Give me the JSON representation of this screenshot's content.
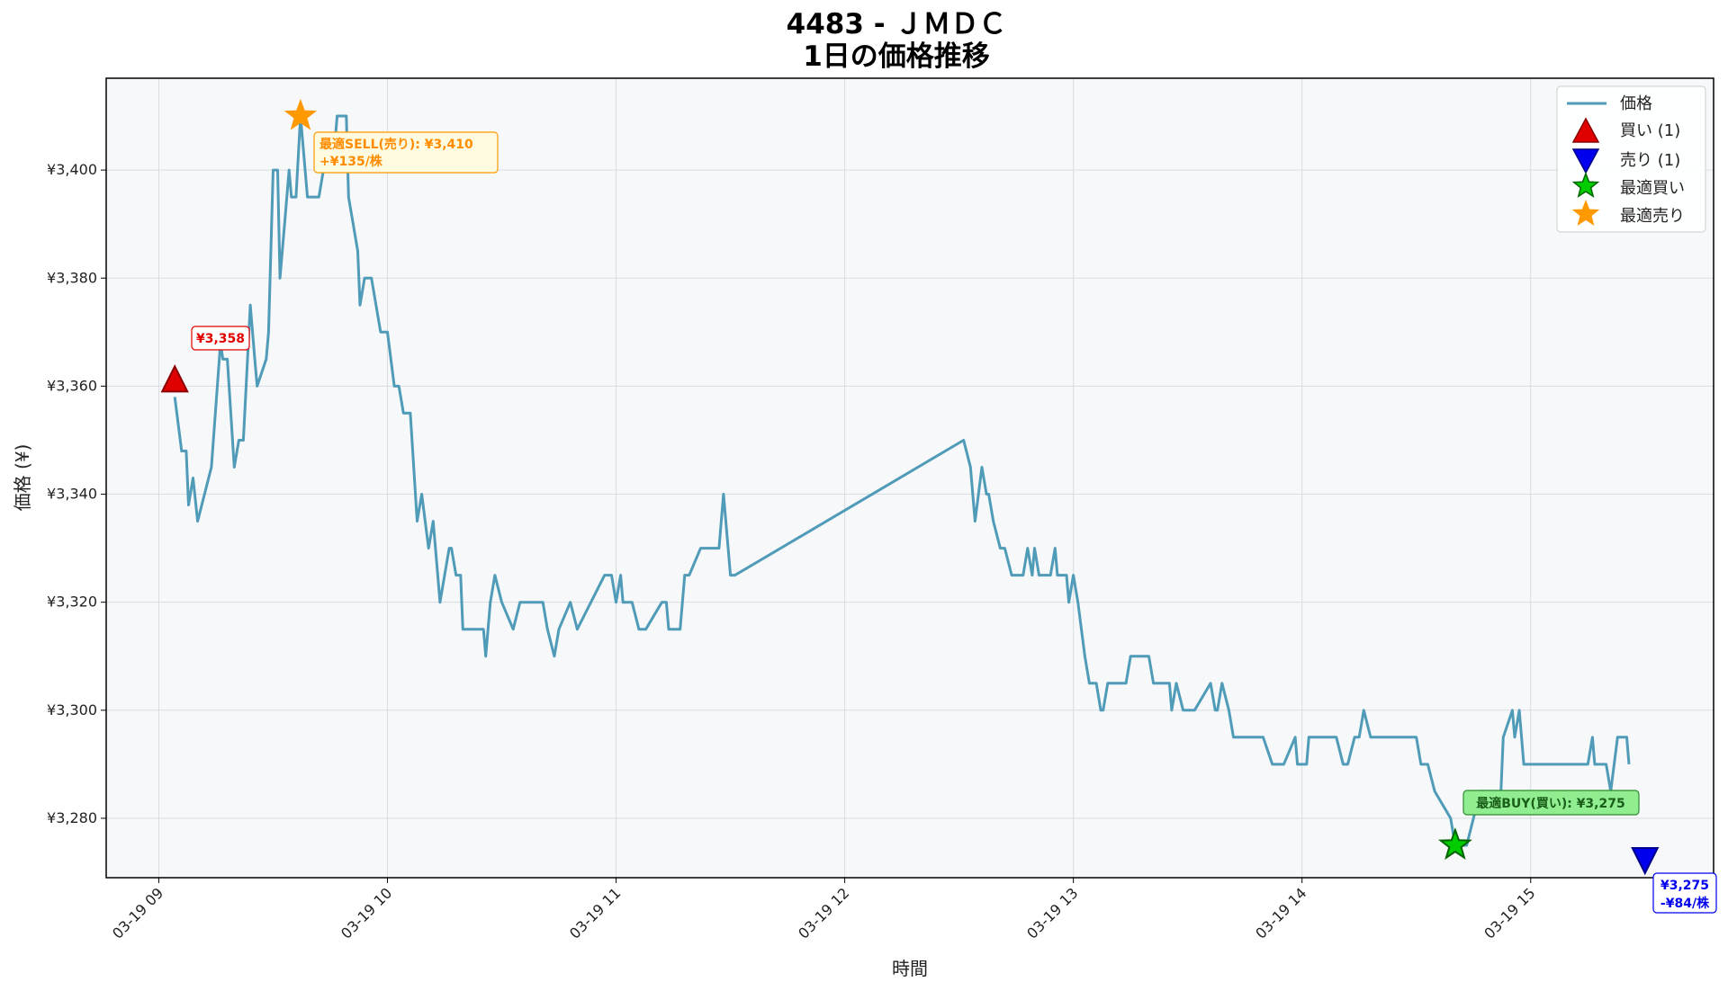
{
  "chart_data": {
    "type": "line",
    "title": "4483 - ＪＭＤＣ",
    "subtitle": "1日の価格推移",
    "xlabel": "時間",
    "ylabel": "価格 (¥)",
    "x_ticks": [
      "03-19 09",
      "03-19 10",
      "03-19 11",
      "03-19 12",
      "03-19 13",
      "03-19 14",
      "03-19 15"
    ],
    "y_ticks": [
      "¥3,280",
      "¥3,300",
      "¥3,320",
      "¥3,340",
      "¥3,360",
      "¥3,380",
      "¥3,400"
    ],
    "xlim_hours": [
      8.77,
      15.8
    ],
    "ylim": [
      3269,
      3417
    ],
    "grid": true,
    "legend_position": "top-right",
    "legend": {
      "price": "価格",
      "buy": "買い (1)",
      "sell": "売り (1)",
      "best_buy": "最適買い",
      "best_sell": "最適売り"
    },
    "colors": {
      "line": "#4f9bb8",
      "buy": "#e00000",
      "sell": "#0000ee",
      "best_buy": "#00cc00",
      "best_sell": "#ff9900",
      "plot_bg": "#f6f8fa"
    },
    "series": [
      {
        "name": "価格",
        "points": [
          [
            9.07,
            3358
          ],
          [
            9.1,
            3348
          ],
          [
            9.12,
            3348
          ],
          [
            9.13,
            3338
          ],
          [
            9.15,
            3343
          ],
          [
            9.17,
            3335
          ],
          [
            9.23,
            3345
          ],
          [
            9.27,
            3368
          ],
          [
            9.28,
            3365
          ],
          [
            9.3,
            3365
          ],
          [
            9.33,
            3345
          ],
          [
            9.35,
            3350
          ],
          [
            9.37,
            3350
          ],
          [
            9.4,
            3375
          ],
          [
            9.42,
            3365
          ],
          [
            9.43,
            3360
          ],
          [
            9.47,
            3365
          ],
          [
            9.48,
            3370
          ],
          [
            9.5,
            3400
          ],
          [
            9.52,
            3400
          ],
          [
            9.53,
            3380
          ],
          [
            9.55,
            3390
          ],
          [
            9.57,
            3400
          ],
          [
            9.58,
            3395
          ],
          [
            9.6,
            3395
          ],
          [
            9.62,
            3410
          ],
          [
            9.65,
            3395
          ],
          [
            9.7,
            3395
          ],
          [
            9.72,
            3400
          ],
          [
            9.75,
            3400
          ],
          [
            9.77,
            3405
          ],
          [
            9.78,
            3410
          ],
          [
            9.82,
            3410
          ],
          [
            9.83,
            3395
          ],
          [
            9.87,
            3385
          ],
          [
            9.88,
            3375
          ],
          [
            9.9,
            3380
          ],
          [
            9.93,
            3380
          ],
          [
            9.97,
            3370
          ],
          [
            10.0,
            3370
          ],
          [
            10.03,
            3360
          ],
          [
            10.05,
            3360
          ],
          [
            10.07,
            3355
          ],
          [
            10.1,
            3355
          ],
          [
            10.13,
            3335
          ],
          [
            10.15,
            3340
          ],
          [
            10.18,
            3330
          ],
          [
            10.2,
            3335
          ],
          [
            10.22,
            3325
          ],
          [
            10.23,
            3320
          ],
          [
            10.27,
            3330
          ],
          [
            10.28,
            3330
          ],
          [
            10.3,
            3325
          ],
          [
            10.32,
            3325
          ],
          [
            10.33,
            3315
          ],
          [
            10.42,
            3315
          ],
          [
            10.43,
            3310
          ],
          [
            10.45,
            3320
          ],
          [
            10.47,
            3325
          ],
          [
            10.5,
            3320
          ],
          [
            10.55,
            3315
          ],
          [
            10.58,
            3320
          ],
          [
            10.68,
            3320
          ],
          [
            10.7,
            3315
          ],
          [
            10.73,
            3310
          ],
          [
            10.75,
            3315
          ],
          [
            10.8,
            3320
          ],
          [
            10.83,
            3315
          ],
          [
            10.95,
            3325
          ],
          [
            10.98,
            3325
          ],
          [
            11.0,
            3320
          ],
          [
            11.02,
            3325
          ],
          [
            11.03,
            3320
          ],
          [
            11.07,
            3320
          ],
          [
            11.1,
            3315
          ],
          [
            11.13,
            3315
          ],
          [
            11.2,
            3320
          ],
          [
            11.22,
            3320
          ],
          [
            11.23,
            3315
          ],
          [
            11.28,
            3315
          ],
          [
            11.3,
            3325
          ],
          [
            11.32,
            3325
          ],
          [
            11.37,
            3330
          ],
          [
            11.45,
            3330
          ],
          [
            11.47,
            3340
          ],
          [
            11.5,
            3325
          ],
          [
            11.52,
            3325
          ],
          [
            12.52,
            3350
          ],
          [
            12.55,
            3345
          ],
          [
            12.57,
            3335
          ],
          [
            12.6,
            3345
          ],
          [
            12.62,
            3340
          ],
          [
            12.63,
            3340
          ],
          [
            12.65,
            3335
          ],
          [
            12.68,
            3330
          ],
          [
            12.7,
            3330
          ],
          [
            12.73,
            3325
          ],
          [
            12.78,
            3325
          ],
          [
            12.8,
            3330
          ],
          [
            12.82,
            3325
          ],
          [
            12.83,
            3330
          ],
          [
            12.85,
            3325
          ],
          [
            12.9,
            3325
          ],
          [
            12.92,
            3330
          ],
          [
            12.93,
            3325
          ],
          [
            12.97,
            3325
          ],
          [
            12.98,
            3320
          ],
          [
            13.0,
            3325
          ],
          [
            13.02,
            3320
          ],
          [
            13.05,
            3310
          ],
          [
            13.07,
            3305
          ],
          [
            13.1,
            3305
          ],
          [
            13.12,
            3300
          ],
          [
            13.13,
            3300
          ],
          [
            13.15,
            3305
          ],
          [
            13.23,
            3305
          ],
          [
            13.25,
            3310
          ],
          [
            13.33,
            3310
          ],
          [
            13.35,
            3305
          ],
          [
            13.42,
            3305
          ],
          [
            13.43,
            3300
          ],
          [
            13.45,
            3305
          ],
          [
            13.48,
            3300
          ],
          [
            13.53,
            3300
          ],
          [
            13.6,
            3305
          ],
          [
            13.62,
            3300
          ],
          [
            13.63,
            3300
          ],
          [
            13.65,
            3305
          ],
          [
            13.68,
            3300
          ],
          [
            13.7,
            3295
          ],
          [
            13.83,
            3295
          ],
          [
            13.87,
            3290
          ],
          [
            13.92,
            3290
          ],
          [
            13.97,
            3295
          ],
          [
            13.98,
            3290
          ],
          [
            14.02,
            3290
          ],
          [
            14.03,
            3295
          ],
          [
            14.15,
            3295
          ],
          [
            14.18,
            3290
          ],
          [
            14.2,
            3290
          ],
          [
            14.23,
            3295
          ],
          [
            14.25,
            3295
          ],
          [
            14.27,
            3300
          ],
          [
            14.3,
            3295
          ],
          [
            14.5,
            3295
          ],
          [
            14.52,
            3290
          ],
          [
            14.55,
            3290
          ],
          [
            14.58,
            3285
          ],
          [
            14.65,
            3280
          ],
          [
            14.67,
            3275
          ],
          [
            14.72,
            3275
          ],
          [
            14.75,
            3280
          ],
          [
            14.78,
            3285
          ],
          [
            14.87,
            3285
          ],
          [
            14.88,
            3295
          ],
          [
            14.92,
            3300
          ],
          [
            14.93,
            3295
          ],
          [
            14.95,
            3300
          ],
          [
            14.97,
            3290
          ],
          [
            15.25,
            3290
          ],
          [
            15.27,
            3295
          ],
          [
            15.28,
            3290
          ],
          [
            15.33,
            3290
          ],
          [
            15.35,
            3285
          ],
          [
            15.38,
            3295
          ],
          [
            15.42,
            3295
          ],
          [
            15.43,
            3290
          ]
        ]
      }
    ],
    "markers": {
      "buy": {
        "x": 9.07,
        "y": 3361
      },
      "sell": {
        "x": 15.5,
        "y": 3272.5
      },
      "best_buy": {
        "x": 14.67,
        "y": 3275
      },
      "best_sell": {
        "x": 9.62,
        "y": 3410
      }
    },
    "annotations": {
      "buy_label": "¥3,358",
      "sell_label_1": "¥3,275",
      "sell_label_2": "-¥84/株",
      "best_sell_label_1": "最適SELL(売り): ¥3,410",
      "best_sell_label_2": "+¥135/株",
      "best_buy_label": "最適BUY(買い): ¥3,275"
    }
  }
}
